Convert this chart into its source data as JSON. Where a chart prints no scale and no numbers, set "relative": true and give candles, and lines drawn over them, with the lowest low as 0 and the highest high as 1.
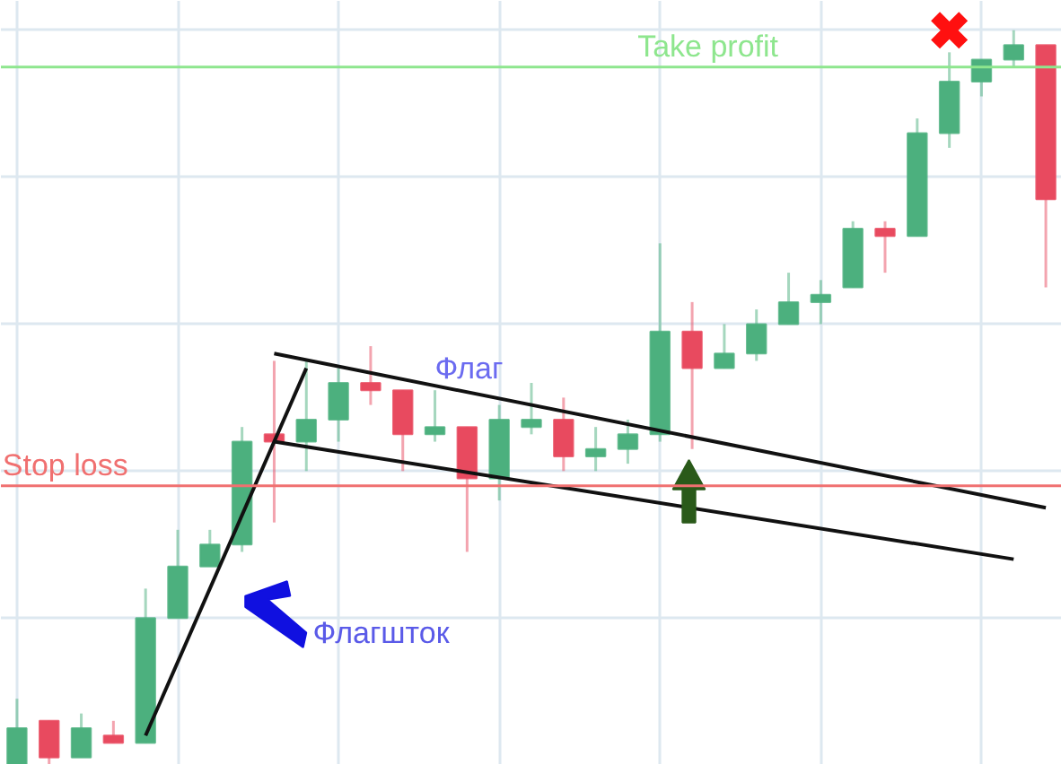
{
  "chart_data": {
    "type": "candlestick",
    "relative": true,
    "grid": true,
    "tick_labels": false,
    "categories": [
      null,
      null,
      null,
      null,
      null,
      null,
      null,
      null,
      null,
      null,
      null,
      null,
      null,
      null,
      null,
      null,
      null,
      null,
      null,
      null,
      null,
      null,
      null,
      null,
      null,
      null,
      null,
      null,
      null,
      null,
      null,
      null,
      null
    ],
    "ohlc": [
      [
        0,
        0.09,
        0,
        0.05
      ],
      [
        0.06,
        0.06,
        0,
        0.01
      ],
      [
        0.01,
        0.07,
        0.01,
        0.05
      ],
      [
        0.04,
        0.06,
        0.03,
        0.03
      ],
      [
        0.03,
        0.24,
        0.03,
        0.2
      ],
      [
        0.2,
        0.32,
        0.2,
        0.27
      ],
      [
        0.27,
        0.32,
        0.27,
        0.3
      ],
      [
        0.3,
        0.46,
        0.29,
        0.44
      ],
      [
        0.45,
        0.55,
        0.33,
        0.44
      ],
      [
        0.44,
        0.55,
        0.4,
        0.47
      ],
      [
        0.47,
        0.54,
        0.44,
        0.52
      ],
      [
        0.52,
        0.57,
        0.49,
        0.51
      ],
      [
        0.51,
        0.51,
        0.4,
        0.45
      ],
      [
        0.45,
        0.51,
        0.44,
        0.46
      ],
      [
        0.46,
        0.46,
        0.29,
        0.39
      ],
      [
        0.39,
        0.49,
        0.36,
        0.47
      ],
      [
        0.46,
        0.52,
        0.45,
        0.47
      ],
      [
        0.47,
        0.5,
        0.4,
        0.42
      ],
      [
        0.42,
        0.46,
        0.4,
        0.43
      ],
      [
        0.43,
        0.47,
        0.41,
        0.45
      ],
      [
        0.45,
        0.71,
        0.44,
        0.59
      ],
      [
        0.59,
        0.63,
        0.43,
        0.54
      ],
      [
        0.54,
        0.6,
        0.54,
        0.56
      ],
      [
        0.56,
        0.62,
        0.55,
        0.6
      ],
      [
        0.6,
        0.67,
        0.6,
        0.63
      ],
      [
        0.63,
        0.66,
        0.6,
        0.64
      ],
      [
        0.65,
        0.74,
        0.65,
        0.73
      ],
      [
        0.73,
        0.74,
        0.67,
        0.72
      ],
      [
        0.72,
        0.88,
        0.72,
        0.86
      ],
      [
        0.86,
        0.97,
        0.84,
        0.93
      ],
      [
        0.93,
        0.96,
        0.91,
        0.96
      ],
      [
        0.96,
        1,
        0.95,
        0.98
      ],
      [
        0.98,
        0.98,
        0.65,
        0.77
      ]
    ],
    "colors": [
      "#4cb07e",
      "#e84a5f",
      "#4cb07e",
      "#e84a5f",
      "#4cb07e",
      "#4cb07e",
      "#4cb07e",
      "#4cb07e",
      "#e84a5f",
      "#4cb07e",
      "#4cb07e",
      "#e84a5f",
      "#e84a5f",
      "#4cb07e",
      "#e84a5f",
      "#4cb07e",
      "#4cb07e",
      "#e84a5f",
      "#4cb07e",
      "#4cb07e",
      "#4cb07e",
      "#e84a5f",
      "#4cb07e",
      "#4cb07e",
      "#4cb07e",
      "#4cb07e",
      "#4cb07e",
      "#e84a5f",
      "#4cb07e",
      "#4cb07e",
      "#4cb07e",
      "#4cb07e",
      "#e84a5f"
    ],
    "series": [
      {
        "type": "line",
        "color": "#111111",
        "values": [
          null,
          null,
          null,
          null,
          0.04,
          null,
          null,
          null,
          null,
          0.54,
          null,
          null,
          null,
          null,
          null,
          null,
          null,
          null,
          null,
          null,
          null,
          null,
          null,
          null,
          null,
          null,
          null,
          null,
          null,
          null,
          null,
          null,
          null
        ]
      },
      {
        "type": "line",
        "color": "#111111",
        "values": [
          null,
          null,
          null,
          null,
          null,
          null,
          null,
          null,
          0.56,
          null,
          null,
          null,
          null,
          null,
          null,
          null,
          null,
          null,
          null,
          null,
          null,
          null,
          null,
          null,
          null,
          null,
          null,
          null,
          null,
          null,
          null,
          null,
          0.35
        ]
      },
      {
        "type": "line",
        "color": "#111111",
        "values": [
          null,
          null,
          null,
          null,
          null,
          null,
          null,
          null,
          0.44,
          null,
          null,
          null,
          null,
          null,
          null,
          null,
          null,
          null,
          null,
          null,
          null,
          null,
          null,
          null,
          null,
          null,
          null,
          null,
          null,
          null,
          null,
          0.28,
          null
        ]
      },
      {
        "type": "scatter",
        "color": "#ff1010",
        "marker": "cross",
        "values": [
          null,
          null,
          null,
          null,
          null,
          null,
          null,
          null,
          null,
          null,
          null,
          null,
          null,
          null,
          null,
          null,
          null,
          null,
          null,
          null,
          null,
          null,
          null,
          null,
          null,
          null,
          null,
          null,
          null,
          1.0,
          null,
          null,
          null
        ]
      }
    ],
    "ref_lines": [
      {
        "axis": "y",
        "value": 0.38,
        "label": "Stop loss",
        "color": "#f07070"
      },
      {
        "axis": "y",
        "value": 0.95,
        "label": "Take profit",
        "color": "#8ee68e"
      }
    ],
    "annotations": [
      "Флаг",
      "Флагшток"
    ]
  }
}
